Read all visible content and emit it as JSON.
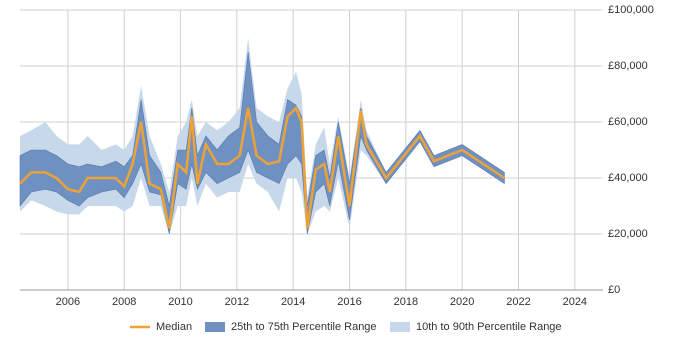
{
  "chart_data": {
    "type": "line",
    "x": [
      2004.3,
      2004.7,
      2005.2,
      2005.6,
      2006.0,
      2006.4,
      2006.7,
      2007.2,
      2007.7,
      2008.0,
      2008.3,
      2008.6,
      2008.9,
      2009.3,
      2009.6,
      2009.9,
      2010.2,
      2010.4,
      2010.6,
      2010.9,
      2011.3,
      2011.7,
      2012.1,
      2012.4,
      2012.7,
      2013.1,
      2013.5,
      2013.8,
      2014.1,
      2014.3,
      2014.5,
      2014.8,
      2015.1,
      2015.3,
      2015.6,
      2016.0,
      2016.4,
      2016.6,
      2017.3,
      2018.5,
      2019.0,
      2020.0,
      2021.5
    ],
    "series": [
      {
        "name": "Median",
        "color": "#eea236",
        "values": [
          38000,
          42000,
          42000,
          40000,
          36000,
          35000,
          40000,
          40000,
          40000,
          37000,
          45000,
          60000,
          38000,
          36000,
          22000,
          45000,
          42000,
          62000,
          38000,
          52000,
          45000,
          45000,
          48000,
          65000,
          48000,
          45000,
          46000,
          62000,
          65000,
          60000,
          22000,
          43000,
          45000,
          35000,
          55000,
          30000,
          64000,
          52000,
          40000,
          55000,
          46000,
          50000,
          40000
        ]
      },
      {
        "name": "25th to 75th Percentile Range",
        "color": "#6f91c2",
        "low": [
          30000,
          35000,
          36000,
          35000,
          32000,
          30000,
          33000,
          35000,
          36000,
          33000,
          38000,
          45000,
          35000,
          34000,
          20000,
          38000,
          36000,
          45000,
          36000,
          42000,
          38000,
          40000,
          42000,
          50000,
          42000,
          40000,
          38000,
          45000,
          48000,
          45000,
          20000,
          35000,
          38000,
          30000,
          46000,
          25000,
          55000,
          50000,
          38000,
          53000,
          44000,
          48000,
          38000
        ],
        "high": [
          48000,
          50000,
          50000,
          48000,
          45000,
          44000,
          45000,
          44000,
          46000,
          44000,
          48000,
          68000,
          48000,
          42000,
          30000,
          50000,
          50000,
          65000,
          48000,
          55000,
          50000,
          55000,
          58000,
          85000,
          60000,
          55000,
          52000,
          68000,
          66000,
          62000,
          30000,
          48000,
          50000,
          40000,
          60000,
          38000,
          65000,
          55000,
          42000,
          57000,
          48000,
          52000,
          42000
        ]
      },
      {
        "name": "10th to 90th Percentile Range",
        "color": "#c7d8eb",
        "low": [
          28000,
          32000,
          30000,
          28000,
          27000,
          27000,
          30000,
          30000,
          30000,
          28000,
          30000,
          40000,
          30000,
          30000,
          20000,
          30000,
          30000,
          40000,
          30000,
          38000,
          33000,
          35000,
          35000,
          45000,
          38000,
          35000,
          28000,
          40000,
          40000,
          35000,
          20000,
          28000,
          30000,
          28000,
          40000,
          22000,
          50000,
          48000,
          38000,
          53000,
          44000,
          48000,
          38000
        ],
        "high": [
          55000,
          57000,
          60000,
          55000,
          52000,
          52000,
          55000,
          50000,
          52000,
          50000,
          55000,
          73000,
          55000,
          45000,
          35000,
          55000,
          60000,
          68000,
          55000,
          60000,
          57000,
          60000,
          65000,
          90000,
          65000,
          62000,
          60000,
          72000,
          78000,
          70000,
          33000,
          52000,
          58000,
          45000,
          62000,
          40000,
          68000,
          57000,
          42000,
          57000,
          48000,
          52000,
          42000
        ]
      }
    ],
    "xlim": [
      2004.3,
      2025
    ],
    "xticks": [
      2006,
      2008,
      2010,
      2012,
      2014,
      2016,
      2018,
      2020,
      2022,
      2024
    ],
    "ylim": [
      0,
      100000
    ],
    "yticks": [
      {
        "value": 0,
        "label": "£0"
      },
      {
        "value": 20000,
        "label": "£20,000"
      },
      {
        "value": 40000,
        "label": "£40,000"
      },
      {
        "value": 60000,
        "label": "£60,000"
      },
      {
        "value": 80000,
        "label": "£80,000"
      },
      {
        "value": 100000,
        "label": "£100,000"
      }
    ],
    "grid": true,
    "legend": "bottom"
  }
}
